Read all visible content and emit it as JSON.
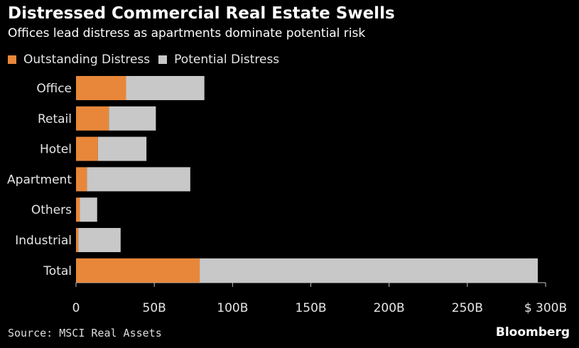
{
  "chart_data": {
    "type": "bar",
    "orientation": "horizontal",
    "stacked": true,
    "title": "Distressed Commercial Real Estate Swells",
    "subtitle": "Offices lead distress as apartments dominate potential risk",
    "categories": [
      "Office",
      "Retail",
      "Hotel",
      "Apartment",
      "Others",
      "Industrial",
      "Total"
    ],
    "series": [
      {
        "name": "Outstanding Distress",
        "color": "#e8873a",
        "values": [
          32,
          21,
          14,
          7,
          2.5,
          1.5,
          79
        ]
      },
      {
        "name": "Potential Distress",
        "color": "#c8c8c8",
        "values": [
          50,
          30,
          31,
          66,
          11,
          27,
          216
        ]
      }
    ],
    "xlim": [
      0,
      300
    ],
    "xticks": [
      0,
      50,
      100,
      150,
      200,
      250,
      300
    ],
    "xtick_labels": [
      "0",
      "50B",
      "100B",
      "150B",
      "200B",
      "250B",
      "$ 300B"
    ],
    "legend_position": "top-left",
    "grid": false
  },
  "source": "Source: MSCI Real Assets",
  "brand": "Bloomberg"
}
